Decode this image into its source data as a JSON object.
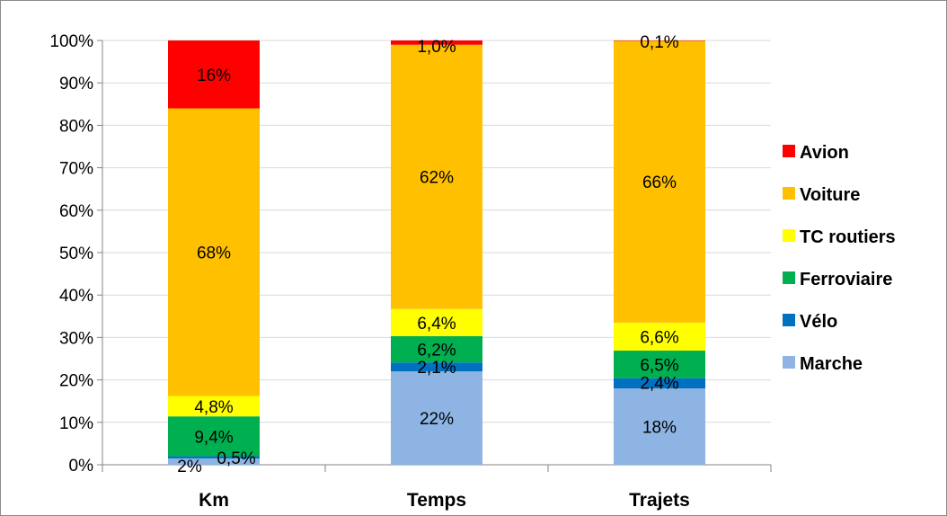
{
  "chart_data": {
    "type": "bar",
    "stacked": true,
    "categories": [
      "Km",
      "Temps",
      "Trajets"
    ],
    "ylim": [
      0,
      100
    ],
    "yticks": [
      "0%",
      "10%",
      "20%",
      "30%",
      "40%",
      "50%",
      "60%",
      "70%",
      "80%",
      "90%",
      "100%"
    ],
    "grid": true,
    "legend_position": "right",
    "series": [
      {
        "name": "Marche",
        "color": "#8EB4E3",
        "values": [
          1.5,
          22,
          18
        ],
        "labels": [
          "2%",
          "22%",
          "18%"
        ]
      },
      {
        "name": "Vélo",
        "color": "#0070C0",
        "values": [
          0.5,
          2.1,
          2.4
        ],
        "labels": [
          "0,5%",
          "2,1%",
          "2,4%"
        ]
      },
      {
        "name": "Ferroviaire",
        "color": "#00B050",
        "values": [
          9.4,
          6.2,
          6.5
        ],
        "labels": [
          "9,4%",
          "6,2%",
          "6,5%"
        ]
      },
      {
        "name": "TC routiers",
        "color": "#FFFF00",
        "values": [
          4.8,
          6.4,
          6.6
        ],
        "labels": [
          "4,8%",
          "6,4%",
          "6,6%"
        ]
      },
      {
        "name": "Voiture",
        "color": "#FFC000",
        "values": [
          67.8,
          62.3,
          66.4
        ],
        "labels": [
          "68%",
          "62%",
          "66%"
        ]
      },
      {
        "name": "Avion",
        "color": "#FF0000",
        "values": [
          16,
          1.0,
          0.1
        ],
        "labels": [
          "16%",
          "1,0%",
          "0,1%"
        ]
      }
    ],
    "legend_order": [
      "Avion",
      "Voiture",
      "TC routiers",
      "Ferroviaire",
      "Vélo",
      "Marche"
    ]
  }
}
